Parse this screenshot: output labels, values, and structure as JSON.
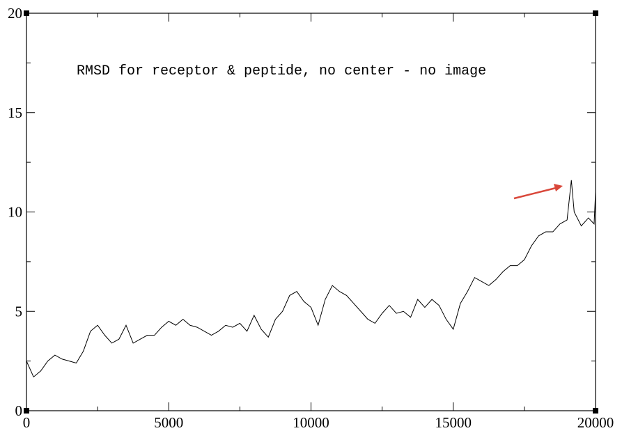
{
  "chart_data": {
    "type": "line",
    "annotation": "RMSD for receptor & peptide, no center - no image",
    "color": "#000000",
    "x": [
      0,
      250,
      500,
      750,
      1000,
      1250,
      1500,
      1750,
      2000,
      2250,
      2500,
      2750,
      3000,
      3250,
      3500,
      3750,
      4000,
      4250,
      4500,
      4750,
      5000,
      5250,
      5500,
      5750,
      6000,
      6250,
      6500,
      6750,
      7000,
      7250,
      7500,
      7750,
      8000,
      8250,
      8500,
      8750,
      9000,
      9250,
      9500,
      9750,
      10000,
      10250,
      10500,
      10750,
      11000,
      11250,
      11500,
      11750,
      12000,
      12250,
      12500,
      12750,
      13000,
      13250,
      13500,
      13750,
      14000,
      14250,
      14500,
      14750,
      15000,
      15250,
      15500,
      15750,
      16000,
      16250,
      16500,
      16750,
      17000,
      17250,
      17500,
      17750,
      18000,
      18250,
      18500,
      18750,
      19000,
      19150,
      19250,
      19500,
      19750,
      19950,
      20000
    ],
    "values": [
      2.5,
      1.7,
      2.0,
      2.5,
      2.8,
      2.6,
      2.5,
      2.4,
      3.0,
      4.0,
      4.3,
      3.8,
      3.4,
      3.6,
      4.3,
      3.4,
      3.6,
      3.8,
      3.8,
      4.2,
      4.5,
      4.3,
      4.6,
      4.3,
      4.2,
      4.0,
      3.8,
      4.0,
      4.3,
      4.2,
      4.4,
      4.0,
      4.8,
      4.1,
      3.7,
      4.6,
      5.0,
      5.8,
      6.0,
      5.5,
      5.2,
      4.3,
      5.6,
      6.3,
      6.0,
      5.8,
      5.4,
      5.0,
      4.6,
      4.4,
      4.9,
      5.3,
      4.9,
      5.0,
      4.7,
      5.6,
      5.2,
      5.6,
      5.3,
      4.6,
      4.1,
      5.4,
      6.0,
      6.7,
      6.5,
      6.3,
      6.6,
      7.0,
      7.3,
      7.3,
      7.6,
      8.3,
      8.8,
      9.0,
      9.0,
      9.4,
      9.6,
      11.6,
      10.0,
      9.3,
      9.7,
      9.4,
      11.0
    ],
    "xlim": [
      0,
      20000
    ],
    "ylim": [
      0,
      20
    ],
    "xticks": [
      0,
      5000,
      10000,
      15000,
      20000
    ],
    "yticks": [
      0,
      5,
      10,
      15,
      20
    ],
    "xminorticks": [
      2500,
      7500,
      12500,
      17500
    ],
    "yminorticks": [
      2.5,
      7.5,
      12.5,
      17.5
    ]
  }
}
